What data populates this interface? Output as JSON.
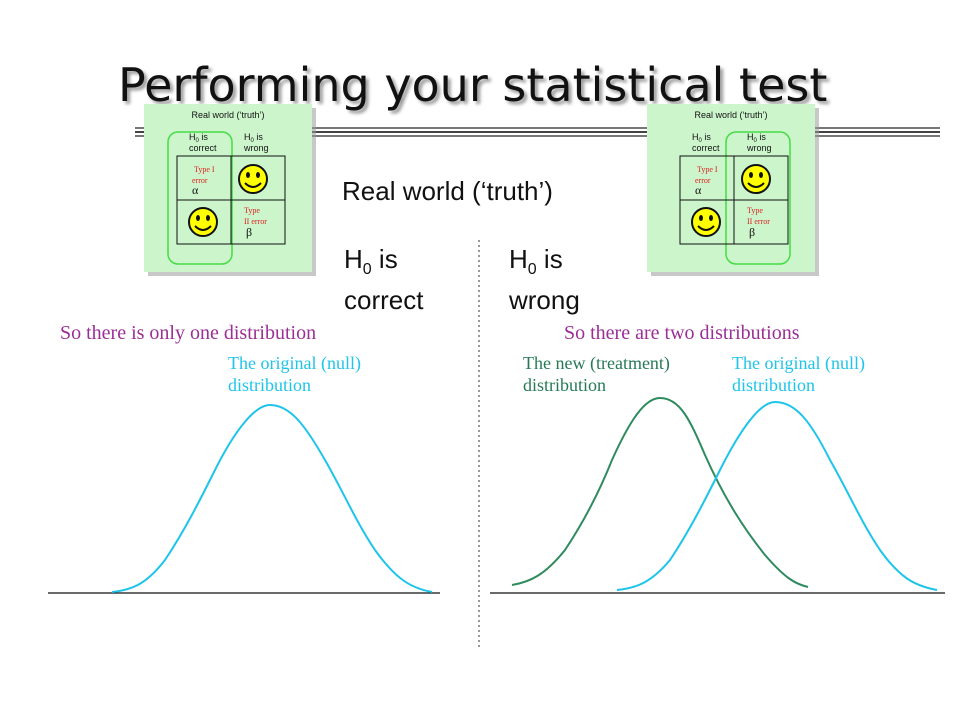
{
  "title": "Performing your statistical test",
  "mini_table": {
    "header": "Real world (‘truth’)",
    "col_correct": [
      "H",
      "0",
      " is",
      "correct"
    ],
    "col_wrong": [
      "H",
      "0",
      " is",
      "wrong"
    ],
    "type1": [
      "Type I",
      "error"
    ],
    "type2": [
      "Type",
      "II error"
    ],
    "alpha": "α",
    "beta": "β"
  },
  "real_world_label": "Real world (‘truth’)",
  "h0_correct": {
    "h": "H",
    "sub": "0",
    "rest": " is",
    "line2": "correct"
  },
  "h0_wrong": {
    "h": "H",
    "sub": "0",
    "rest": " is",
    "line2": "wrong"
  },
  "left_caption": "So there is only one distribution",
  "right_caption": "So there are two distributions",
  "null_dist_label": [
    "The original (null)",
    "distribution"
  ],
  "treatment_dist_label": [
    "The new (treatment)",
    "distribution"
  ],
  "colors": {
    "null": "#1ec4ea",
    "treatment": "#2e8b5e",
    "caption": "#9b2f96",
    "box_fill": "#ccf5cc",
    "highlight": "#44dd44",
    "error_text": "#dd2222",
    "smiley": "#ffff00"
  },
  "icons": [
    "smiley-icon",
    "alpha-symbol",
    "beta-symbol"
  ]
}
